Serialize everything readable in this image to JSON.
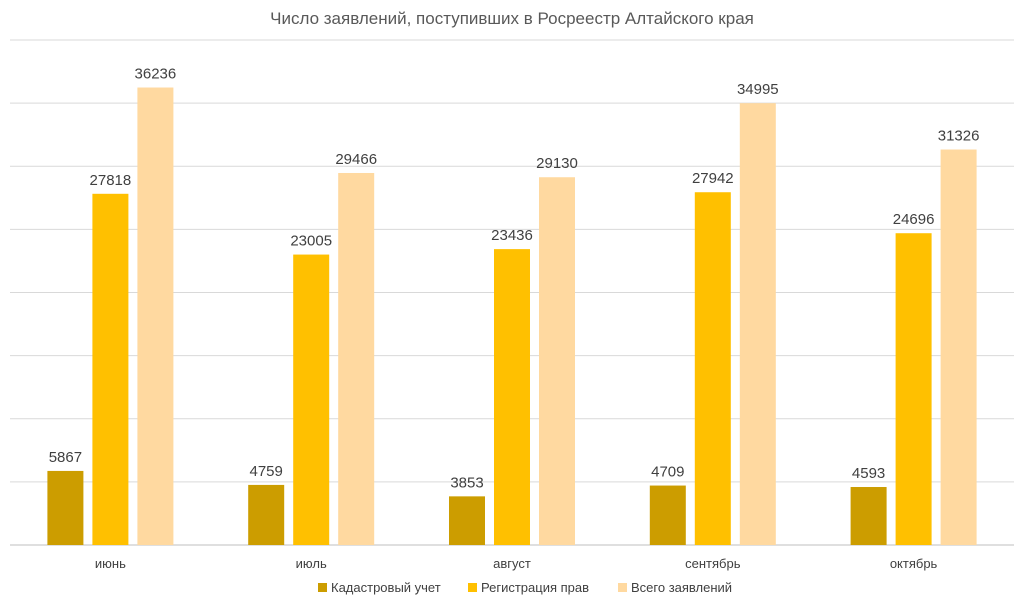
{
  "chart_data": {
    "type": "bar",
    "title": "Число заявлений, поступивших в Росреестр Алтайского края",
    "categories": [
      "июнь",
      "июль",
      "август",
      "сентябрь",
      "октябрь"
    ],
    "series": [
      {
        "name": "Кадастровый учет",
        "color": "#CC9D00",
        "values": [
          5867,
          4759,
          3853,
          4709,
          4593
        ]
      },
      {
        "name": "Регистрация прав",
        "color": "#FFC000",
        "values": [
          27818,
          23005,
          23436,
          27942,
          24696
        ]
      },
      {
        "name": "Всего заявлений",
        "color": "#FFD9A0",
        "values": [
          36236,
          29466,
          29130,
          34995,
          31326
        ]
      }
    ],
    "ylim": [
      0,
      40000
    ],
    "y_gridline_step": 5000,
    "grid": true,
    "y_axis_labels_visible": false,
    "legend_position": "bottom",
    "data_labels": true
  }
}
